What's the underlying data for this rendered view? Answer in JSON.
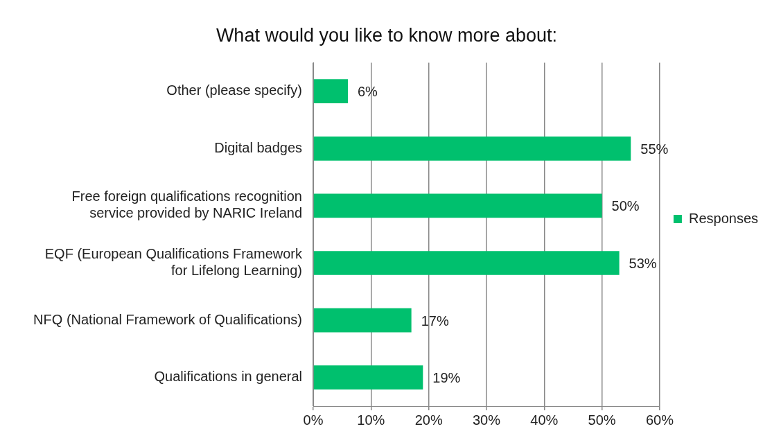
{
  "chart_data": {
    "type": "bar",
    "orientation": "horizontal",
    "title": "What would you like to know more about:",
    "categories": [
      "Other (please specify)",
      "Digital badges",
      "Free foreign qualifications recognition service provided by NARIC Ireland",
      "EQF (European Qualifications Framework for Lifelong Learning)",
      "NFQ (National Framework of Qualifications)",
      "Qualifications in general"
    ],
    "series": [
      {
        "name": "Responses",
        "color": "#00c06e",
        "values": [
          6,
          55,
          50,
          53,
          17,
          19
        ],
        "value_labels": [
          "6%",
          "55%",
          "50%",
          "53%",
          "17%",
          "19%"
        ]
      }
    ],
    "xlim": [
      0,
      60
    ],
    "xticks": [
      {
        "value": 0,
        "label": "0%"
      },
      {
        "value": 10,
        "label": "10%"
      },
      {
        "value": 20,
        "label": "20%"
      },
      {
        "value": 30,
        "label": "30%"
      },
      {
        "value": 40,
        "label": "40%"
      },
      {
        "value": 50,
        "label": "50%"
      },
      {
        "value": 60,
        "label": "60%"
      }
    ],
    "grid": "x",
    "legend": "right"
  }
}
